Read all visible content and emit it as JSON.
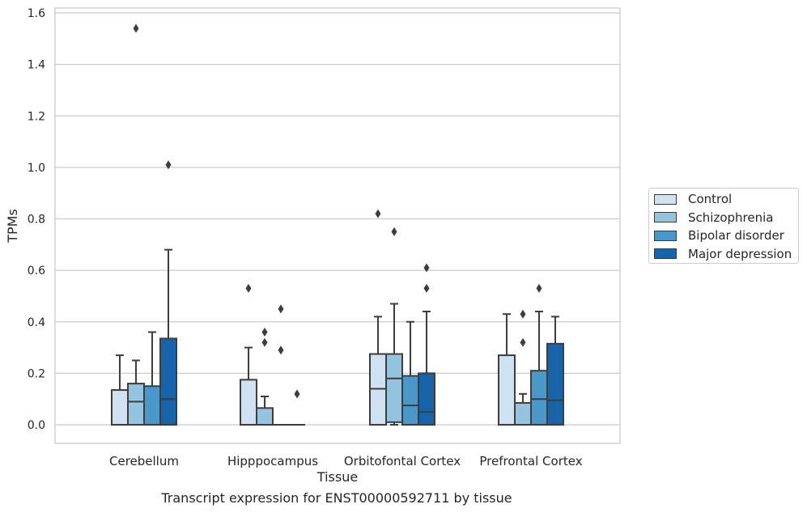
{
  "chart_data": {
    "type": "box",
    "title": "",
    "caption": "Transcript expression for ENST00000592711 by tissue",
    "xlabel": "Tissue",
    "ylabel": "TPMs",
    "ylim": [
      -0.075,
      1.62
    ],
    "yticks": [
      "0.0",
      "0.2",
      "0.4",
      "0.6",
      "0.8",
      "1.0",
      "1.2",
      "1.4",
      "1.6"
    ],
    "grid": "horizontal",
    "legend_position": "right",
    "categories": [
      "Cerebellum",
      "Hipppocampus",
      "Orbitofontal Cortex",
      "Prefrontal Cortex"
    ],
    "series": [
      {
        "name": "Control",
        "color": "#d0e1f2",
        "boxes": [
          {
            "whislo": 0.0,
            "q1": 0.0,
            "med": 0.0,
            "q3": 0.135,
            "whishi": 0.27,
            "fliers": []
          },
          {
            "whislo": 0.0,
            "q1": 0.0,
            "med": 0.0,
            "q3": 0.175,
            "whishi": 0.3,
            "fliers": [
              0.53
            ]
          },
          {
            "whislo": 0.0,
            "q1": 0.0,
            "med": 0.14,
            "q3": 0.275,
            "whishi": 0.42,
            "fliers": [
              0.82
            ]
          },
          {
            "whislo": 0.0,
            "q1": 0.0,
            "med": 0.0,
            "q3": 0.27,
            "whishi": 0.43,
            "fliers": []
          }
        ]
      },
      {
        "name": "Schizophrenia",
        "color": "#94c4df",
        "boxes": [
          {
            "whislo": 0.0,
            "q1": 0.0,
            "med": 0.09,
            "q3": 0.16,
            "whishi": 0.25,
            "fliers": [
              1.54
            ]
          },
          {
            "whislo": 0.0,
            "q1": 0.0,
            "med": 0.0,
            "q3": 0.065,
            "whishi": 0.11,
            "fliers": [
              0.36,
              0.32
            ]
          },
          {
            "whislo": 0.0,
            "q1": 0.01,
            "med": 0.18,
            "q3": 0.275,
            "whishi": 0.47,
            "fliers": [
              0.75
            ]
          },
          {
            "whislo": 0.0,
            "q1": 0.0,
            "med": 0.0,
            "q3": 0.085,
            "whishi": 0.12,
            "fliers": [
              0.43,
              0.32
            ]
          }
        ]
      },
      {
        "name": "Bipolar disorder",
        "color": "#4a98c9",
        "boxes": [
          {
            "whislo": 0.0,
            "q1": 0.0,
            "med": 0.0,
            "q3": 0.15,
            "whishi": 0.36,
            "fliers": []
          },
          {
            "whislo": 0.0,
            "q1": 0.0,
            "med": 0.0,
            "q3": 0.0,
            "whishi": 0.0,
            "fliers": [
              0.45,
              0.29
            ]
          },
          {
            "whislo": 0.0,
            "q1": 0.0,
            "med": 0.075,
            "q3": 0.19,
            "whishi": 0.4,
            "fliers": []
          },
          {
            "whislo": 0.0,
            "q1": 0.0,
            "med": 0.1,
            "q3": 0.21,
            "whishi": 0.44,
            "fliers": [
              0.53
            ]
          }
        ]
      },
      {
        "name": "Major depression",
        "color": "#1764ab",
        "boxes": [
          {
            "whislo": 0.0,
            "q1": 0.0,
            "med": 0.1,
            "q3": 0.335,
            "whishi": 0.68,
            "fliers": [
              1.01
            ]
          },
          {
            "whislo": 0.0,
            "q1": 0.0,
            "med": 0.0,
            "q3": 0.0,
            "whishi": 0.0,
            "fliers": [
              0.12
            ]
          },
          {
            "whislo": 0.0,
            "q1": 0.0,
            "med": 0.05,
            "q3": 0.2,
            "whishi": 0.44,
            "fliers": [
              0.61,
              0.53
            ]
          },
          {
            "whislo": 0.0,
            "q1": 0.0,
            "med": 0.095,
            "q3": 0.315,
            "whishi": 0.42,
            "fliers": []
          }
        ]
      }
    ]
  }
}
